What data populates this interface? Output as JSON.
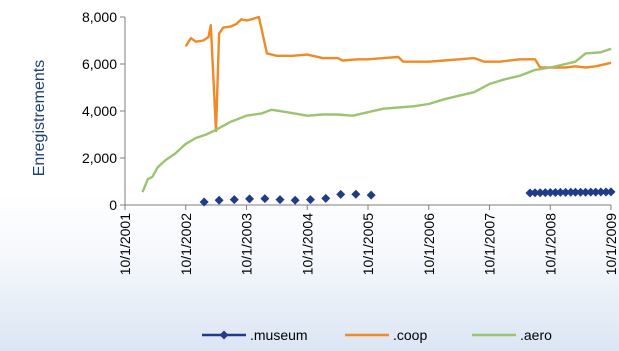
{
  "chart_data": {
    "type": "line",
    "title": "",
    "xlabel": "",
    "ylabel": "Enregistrements",
    "ylim": [
      0,
      8000
    ],
    "yticks": [
      "0",
      "2,000",
      "4,000",
      "6,000",
      "8,000"
    ],
    "xlim": [
      "2001-10-01",
      "2009-10-01"
    ],
    "xticks": [
      "10/1/2001",
      "10/1/2002",
      "10/1/2003",
      "10/1/2004",
      "10/1/2005",
      "10/1/2006",
      "10/1/2007",
      "10/1/2008",
      "10/1/2009"
    ],
    "grid": false,
    "legend": "bottom",
    "series": [
      {
        "name": ".museum",
        "color": "#1f3c88",
        "marker": "diamond",
        "line": false,
        "points": [
          [
            "2003-01-20",
            130
          ],
          [
            "2003-04-20",
            200
          ],
          [
            "2003-07-20",
            230
          ],
          [
            "2003-10-20",
            260
          ],
          [
            "2004-01-20",
            270
          ],
          [
            "2004-04-20",
            230
          ],
          [
            "2004-07-20",
            200
          ],
          [
            "2004-10-20",
            230
          ],
          [
            "2005-01-20",
            280
          ],
          [
            "2005-04-20",
            450
          ],
          [
            "2005-07-20",
            460
          ],
          [
            "2005-10-20",
            420
          ],
          [
            "2008-06-01",
            510
          ],
          [
            "2008-07-01",
            520
          ],
          [
            "2008-08-01",
            520
          ],
          [
            "2008-09-01",
            525
          ],
          [
            "2008-10-01",
            530
          ],
          [
            "2008-11-01",
            530
          ],
          [
            "2008-12-01",
            535
          ],
          [
            "2009-01-01",
            535
          ],
          [
            "2009-02-01",
            540
          ],
          [
            "2009-03-01",
            540
          ],
          [
            "2009-04-01",
            545
          ],
          [
            "2009-05-01",
            545
          ],
          [
            "2009-06-01",
            550
          ],
          [
            "2009-07-01",
            550
          ],
          [
            "2009-08-01",
            555
          ],
          [
            "2009-09-01",
            555
          ],
          [
            "2009-10-01",
            560
          ]
        ]
      },
      {
        "name": ".coop",
        "color": "#f08a24",
        "marker": "none",
        "line": true,
        "points": [
          [
            "2002-10-01",
            6750
          ],
          [
            "2002-11-01",
            7100
          ],
          [
            "2002-12-01",
            6950
          ],
          [
            "2003-01-15",
            7000
          ],
          [
            "2003-02-15",
            7150
          ],
          [
            "2003-03-01",
            7650
          ],
          [
            "2003-04-01",
            3150
          ],
          [
            "2003-04-20",
            7300
          ],
          [
            "2003-05-15",
            7550
          ],
          [
            "2003-07-01",
            7600
          ],
          [
            "2003-08-01",
            7700
          ],
          [
            "2003-09-01",
            7900
          ],
          [
            "2003-10-01",
            7850
          ],
          [
            "2003-11-01",
            7900
          ],
          [
            "2003-12-15",
            8000
          ],
          [
            "2004-02-01",
            6450
          ],
          [
            "2004-04-01",
            6350
          ],
          [
            "2004-07-01",
            6350
          ],
          [
            "2004-10-01",
            6400
          ],
          [
            "2005-01-01",
            6250
          ],
          [
            "2005-04-01",
            6250
          ],
          [
            "2005-05-01",
            6150
          ],
          [
            "2005-08-01",
            6200
          ],
          [
            "2005-10-01",
            6200
          ],
          [
            "2006-01-01",
            6250
          ],
          [
            "2006-04-01",
            6300
          ],
          [
            "2006-05-01",
            6100
          ],
          [
            "2006-10-01",
            6100
          ],
          [
            "2007-01-01",
            6150
          ],
          [
            "2007-04-01",
            6200
          ],
          [
            "2007-07-01",
            6250
          ],
          [
            "2007-09-01",
            6100
          ],
          [
            "2007-12-01",
            6100
          ],
          [
            "2008-04-01",
            6200
          ],
          [
            "2008-07-01",
            6200
          ],
          [
            "2008-08-01",
            5850
          ],
          [
            "2009-01-01",
            5850
          ],
          [
            "2009-03-01",
            5900
          ],
          [
            "2009-05-01",
            5850
          ],
          [
            "2009-07-01",
            5900
          ],
          [
            "2009-10-01",
            6050
          ]
        ]
      },
      {
        "name": ".aero",
        "color": "#9cc36e",
        "marker": "none",
        "line": true,
        "points": [
          [
            "2002-01-15",
            550
          ],
          [
            "2002-02-15",
            1100
          ],
          [
            "2002-03-15",
            1200
          ],
          [
            "2002-04-15",
            1600
          ],
          [
            "2002-06-01",
            1900
          ],
          [
            "2002-08-01",
            2200
          ],
          [
            "2002-10-01",
            2600
          ],
          [
            "2002-12-01",
            2850
          ],
          [
            "2003-02-01",
            3000
          ],
          [
            "2003-04-01",
            3200
          ],
          [
            "2003-07-01",
            3550
          ],
          [
            "2003-10-01",
            3800
          ],
          [
            "2004-01-01",
            3900
          ],
          [
            "2004-03-01",
            4050
          ],
          [
            "2004-06-01",
            3950
          ],
          [
            "2004-10-01",
            3800
          ],
          [
            "2005-01-01",
            3850
          ],
          [
            "2005-04-01",
            3850
          ],
          [
            "2005-07-01",
            3800
          ],
          [
            "2005-10-01",
            3950
          ],
          [
            "2006-01-01",
            4100
          ],
          [
            "2006-04-01",
            4150
          ],
          [
            "2006-07-01",
            4200
          ],
          [
            "2006-10-01",
            4300
          ],
          [
            "2007-01-01",
            4500
          ],
          [
            "2007-04-01",
            4650
          ],
          [
            "2007-07-01",
            4800
          ],
          [
            "2007-10-01",
            5150
          ],
          [
            "2008-01-01",
            5350
          ],
          [
            "2008-04-01",
            5500
          ],
          [
            "2008-07-01",
            5750
          ],
          [
            "2008-10-01",
            5850
          ],
          [
            "2009-01-01",
            6000
          ],
          [
            "2009-03-01",
            6100
          ],
          [
            "2009-05-01",
            6450
          ],
          [
            "2009-08-01",
            6500
          ],
          [
            "2009-10-01",
            6650
          ]
        ]
      }
    ]
  }
}
